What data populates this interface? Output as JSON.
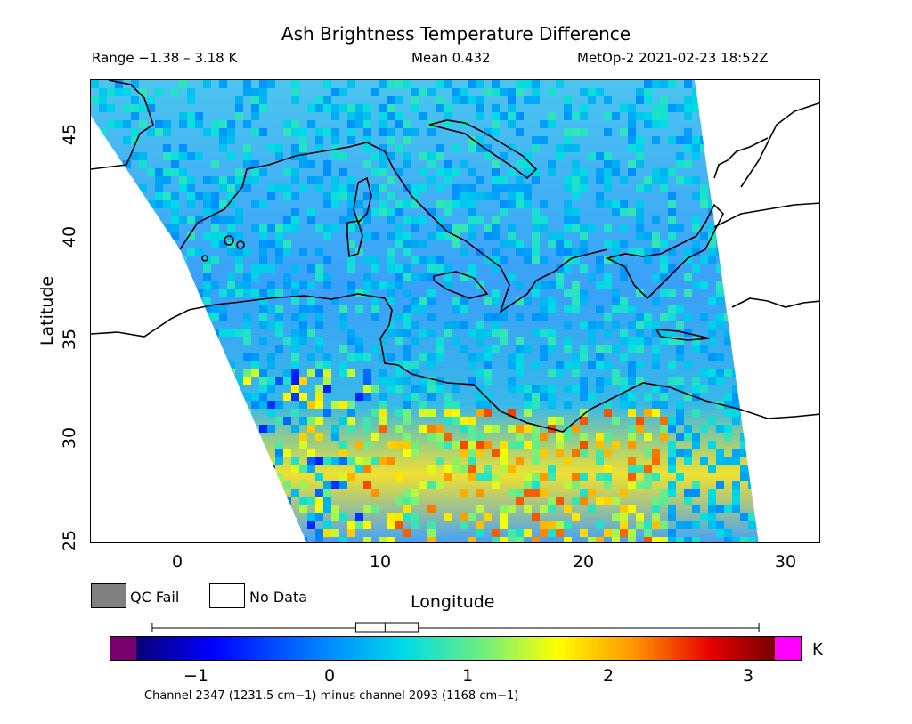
{
  "title": "Ash Brightness Temperature Difference",
  "header": {
    "range": "Range −1.38 – 3.18 K",
    "mean": "Mean 0.432",
    "satellite": "MetOp-2 2021-02-23 18:52Z"
  },
  "map": {
    "lon_range": [
      -4.4,
      31.5
    ],
    "lat_range": [
      24.6,
      47.8
    ],
    "x_ticks": [
      "0",
      "10",
      "20",
      "30"
    ],
    "y_ticks": [
      "45",
      "40",
      "35",
      "30",
      "25"
    ],
    "xlabel": "Longitude",
    "ylabel": "Latitude",
    "swath_color_low": "#2a8cff",
    "swath_color_mid": "#4cc4f0",
    "swath_color_high": "#f0e030"
  },
  "legend": {
    "qc_fail": "QC Fail",
    "no_data": "No Data",
    "qc_fail_color": "#808080",
    "no_data_color": "#ffffff"
  },
  "colorbar": {
    "unit": "K",
    "range": [
      -1.5,
      3.3
    ],
    "ticks": [
      "−1",
      "0",
      "1",
      "2",
      "3"
    ],
    "under_color": "#7a006e",
    "over_color": "#ff00ff",
    "boxplot": {
      "min": -1.38,
      "q1": 0.15,
      "median": 0.37,
      "q3": 0.62,
      "max": 3.18
    }
  },
  "footer": "Channel 2347 (1231.5 cm−1) minus channel 2093 (1168 cm−1)"
}
